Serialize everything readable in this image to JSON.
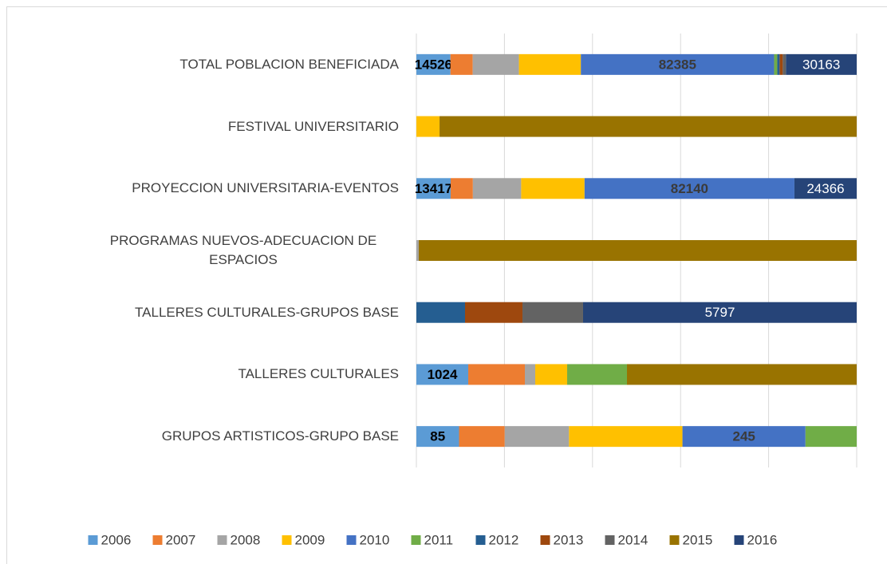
{
  "chart_data": {
    "type": "bar_stacked_percent",
    "orientation": "horizontal",
    "categories": [
      "TOTAL POBLACION BENEFICIADA",
      "FESTIVAL UNIVERSITARIO",
      "PROYECCION UNIVERSITARIA-EVENTOS",
      "PROGRAMAS NUEVOS-ADECUACION DE ESPACIOS",
      "TALLERES CULTURALES-GRUPOS BASE",
      "TALLERES CULTURALES",
      "GRUPOS ARTISTICOS-GRUPO BASE"
    ],
    "xlim": [
      0,
      100
    ],
    "xticks": [
      0,
      20,
      40,
      60,
      80,
      100
    ],
    "grid": true,
    "legend": "bottom",
    "series": [
      {
        "name": "2006",
        "color": "#5b9bd5",
        "label_color": "#000000",
        "values": [
          14526,
          0,
          13417,
          0,
          0,
          1024,
          85
        ],
        "value_labels": [
          "14526",
          null,
          "13417",
          null,
          null,
          "1024",
          "85"
        ]
      },
      {
        "name": "2007",
        "color": "#ed7d31",
        "values": [
          9500,
          0,
          8700,
          0,
          0,
          1118,
          91
        ]
      },
      {
        "name": "2008",
        "color": "#a5a5a5",
        "values": [
          19700,
          0,
          18900,
          30,
          0,
          205,
          128
        ]
      },
      {
        "name": "2009",
        "color": "#ffc000",
        "values": [
          26400,
          500,
          24800,
          0,
          0,
          630,
          226
        ]
      },
      {
        "name": "2010",
        "color": "#4472c4",
        "label_color": "#3a3a3a",
        "values": [
          82385,
          0,
          82140,
          0,
          0,
          0,
          245
        ],
        "value_labels": [
          "82385",
          null,
          "82140",
          null,
          null,
          null,
          "245"
        ]
      },
      {
        "name": "2011",
        "color": "#70ad47",
        "values": [
          1350,
          0,
          0,
          0,
          0,
          1181,
          102
        ]
      },
      {
        "name": "2012",
        "color": "#255e91",
        "values": [
          1000,
          0,
          0,
          0,
          1031,
          0,
          0
        ]
      },
      {
        "name": "2013",
        "color": "#9e480e",
        "values": [
          1350,
          0,
          0,
          0,
          1217,
          0,
          0
        ]
      },
      {
        "name": "2014",
        "color": "#636363",
        "values": [
          1350,
          0,
          0,
          0,
          1284,
          0,
          0
        ]
      },
      {
        "name": "2015",
        "color": "#997300",
        "values": [
          0,
          9000,
          0,
          5500,
          0,
          4536,
          0
        ]
      },
      {
        "name": "2016",
        "color": "#264478",
        "label_color": "#ffffff",
        "values": [
          30163,
          0,
          24366,
          0,
          5797,
          0,
          0
        ],
        "value_labels": [
          "30163",
          null,
          "24366",
          null,
          "5797",
          null,
          null
        ]
      }
    ]
  }
}
